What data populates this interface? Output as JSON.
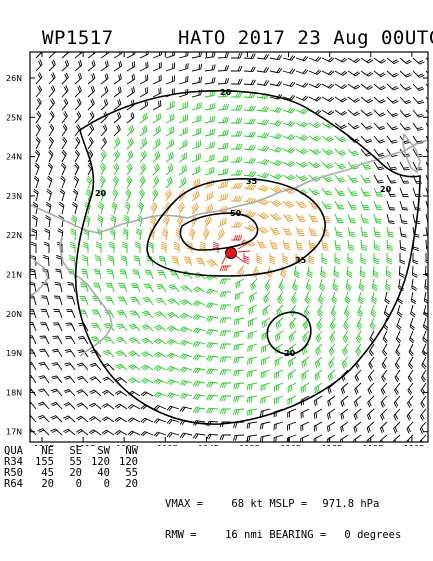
{
  "header": {
    "storm_id": "WP1517",
    "title": "HATO 2017 23 Aug 00UTC"
  },
  "map": {
    "lat_labels": [
      "26N",
      "25N",
      "24N",
      "23N",
      "22N",
      "21N",
      "20N",
      "19N",
      "18N",
      "17N"
    ],
    "lon_labels": [
      "110E",
      "111E",
      "112E",
      "113E",
      "114E",
      "115E",
      "116E",
      "117E",
      "118E",
      "119E"
    ],
    "contour_labels": [
      "20",
      "20",
      "20",
      "35",
      "35",
      "50",
      "20"
    ],
    "colors": {
      "wind_low": "#000000",
      "wind_34kt": "#22cc22",
      "wind_50kt": "#e8a030",
      "wind_64kt": "#ee2222",
      "coastline": "#aaaaaa",
      "center": "#ee1111"
    }
  },
  "radii_table": {
    "headers": [
      "QUA",
      "NE",
      "SE",
      "SW",
      "NW"
    ],
    "rows": [
      [
        "R34",
        "155",
        "55",
        "120",
        "120"
      ],
      [
        "R50",
        "45",
        "20",
        "40",
        "55"
      ],
      [
        "R64",
        "20",
        "0",
        "0",
        "20"
      ]
    ]
  },
  "metrics": {
    "vmax_label": "VMAX =",
    "vmax_value": "68 kt",
    "mslp_label": "MSLP =",
    "mslp_value": "971.8 hPa",
    "rmw_label": "RMW =",
    "rmw_value": "16 nmi",
    "bearing_label": "BEARING =",
    "bearing_value": "0 degrees"
  }
}
